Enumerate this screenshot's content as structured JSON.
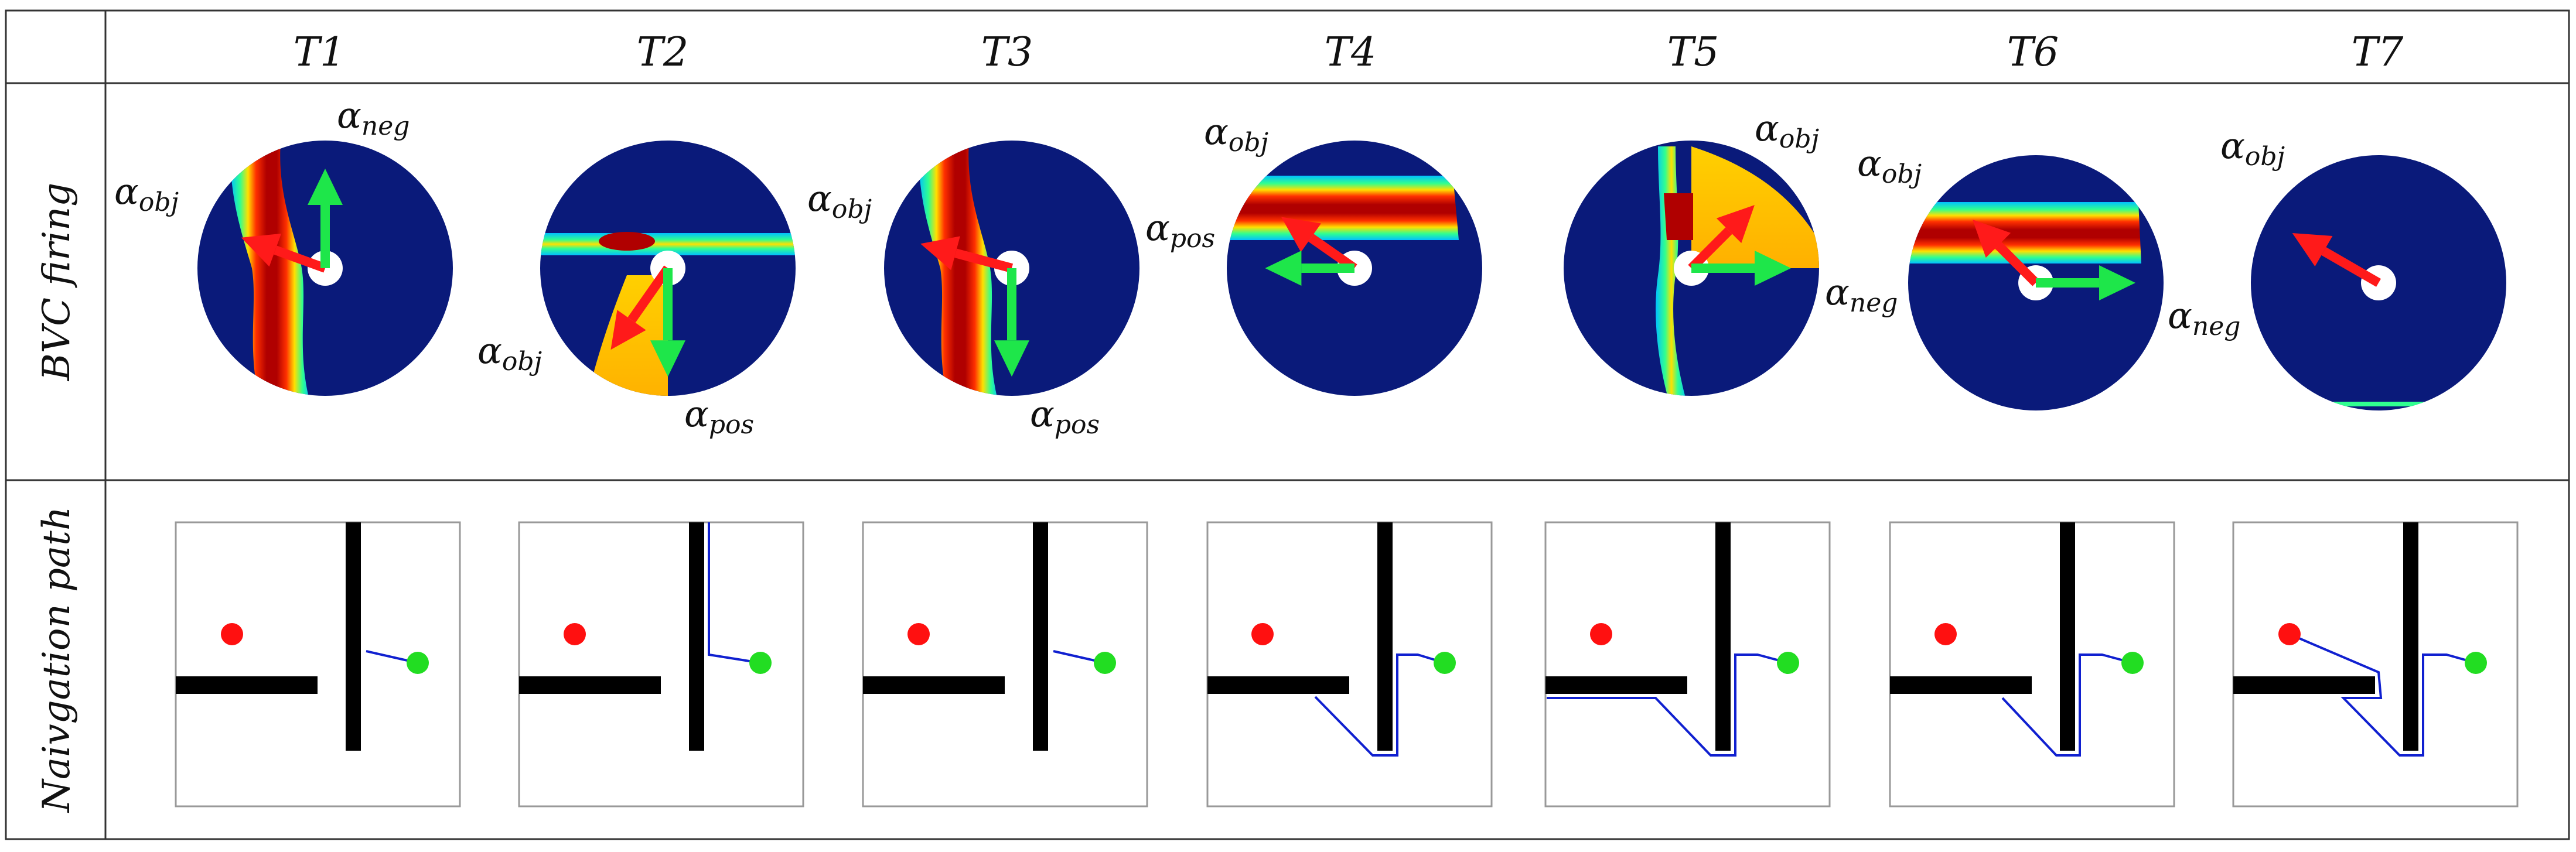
{
  "columns": [
    "T1",
    "T2",
    "T3",
    "T4",
    "T5",
    "T6",
    "T7"
  ],
  "rows": [
    "BVC firing",
    "Naivgation path"
  ],
  "vector_label_symbol": "α",
  "vector_names": {
    "obj": "obj",
    "pos": "pos",
    "neg": "neg"
  },
  "colors": {
    "obj": "#ff1a1a",
    "pos": "#1ee64a",
    "neg": "#1ee64a",
    "field_background": "#0a1a7a",
    "path": "#1020d0",
    "goal": "#22dd22",
    "start": "#ff1010",
    "wall": "#000000"
  },
  "panels": [
    {
      "column": "T1",
      "vectors": [
        {
          "kind": "obj",
          "angle_deg": 160,
          "length": 0.7
        },
        {
          "kind": "neg",
          "angle_deg": 90,
          "length": 0.78
        }
      ]
    },
    {
      "column": "T2",
      "vectors": [
        {
          "kind": "obj",
          "angle_deg": 235,
          "length": 0.78
        },
        {
          "kind": "pos",
          "angle_deg": 270,
          "length": 0.85
        }
      ]
    },
    {
      "column": "T3",
      "vectors": [
        {
          "kind": "obj",
          "angle_deg": 165,
          "length": 0.74
        },
        {
          "kind": "pos",
          "angle_deg": 270,
          "length": 0.85
        }
      ]
    },
    {
      "column": "T4",
      "vectors": [
        {
          "kind": "obj",
          "angle_deg": 145,
          "length": 0.7
        },
        {
          "kind": "pos",
          "angle_deg": 180,
          "length": 0.7
        }
      ]
    },
    {
      "column": "T5",
      "vectors": [
        {
          "kind": "obj",
          "angle_deg": 45,
          "length": 0.7
        },
        {
          "kind": "neg",
          "angle_deg": 0,
          "length": 0.78
        }
      ]
    },
    {
      "column": "T6",
      "vectors": [
        {
          "kind": "obj",
          "angle_deg": 135,
          "length": 0.7
        },
        {
          "kind": "neg",
          "angle_deg": 0,
          "length": 0.78
        }
      ]
    },
    {
      "column": "T7",
      "vectors": [
        {
          "kind": "obj",
          "angle_deg": 150,
          "length": 0.78
        }
      ]
    }
  ]
}
